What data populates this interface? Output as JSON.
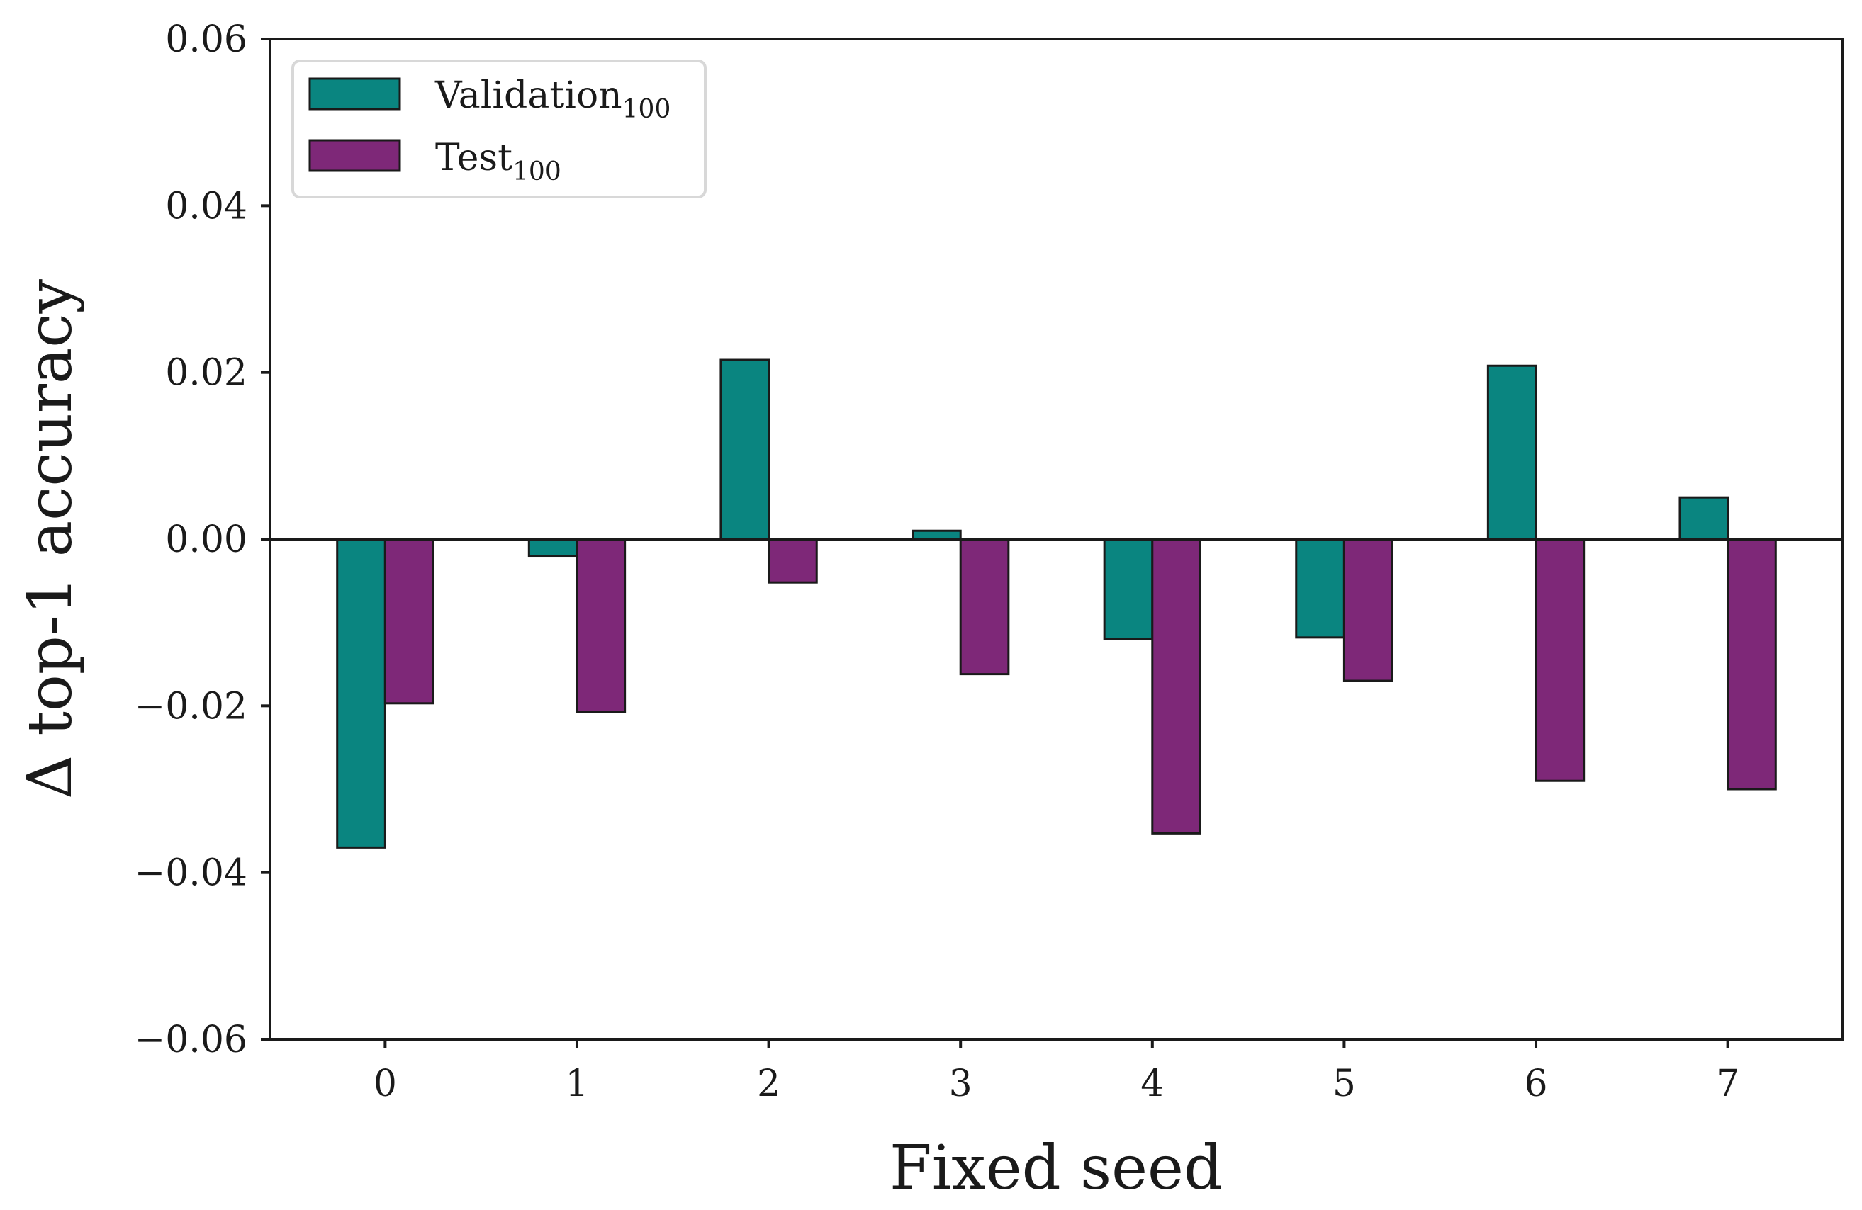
{
  "chart_data": {
    "type": "bar",
    "title": "",
    "xlabel": "Fixed seed",
    "ylabel": "Δ top-1 accuracy",
    "categories": [
      "0",
      "1",
      "2",
      "3",
      "4",
      "5",
      "6",
      "7"
    ],
    "series": [
      {
        "name": "Validation",
        "name_subscript": "100",
        "color": "#0a8580",
        "values": [
          -0.037,
          -0.002,
          0.0215,
          0.001,
          -0.012,
          -0.0118,
          0.0208,
          0.005
        ]
      },
      {
        "name": "Test",
        "name_subscript": "100",
        "color": "#7e2878",
        "values": [
          -0.0197,
          -0.0207,
          -0.0052,
          -0.0162,
          -0.0353,
          -0.017,
          -0.029,
          -0.03
        ]
      }
    ],
    "ylim": [
      -0.06,
      0.06
    ],
    "yticks": [
      "−0.06",
      "−0.04",
      "−0.02",
      "0.00",
      "0.02",
      "0.04",
      "0.06"
    ],
    "ytick_values": [
      -0.06,
      -0.04,
      -0.02,
      0.0,
      0.02,
      0.04,
      0.06
    ],
    "zero_line": true,
    "grid": false,
    "legend_position": "top-left"
  }
}
